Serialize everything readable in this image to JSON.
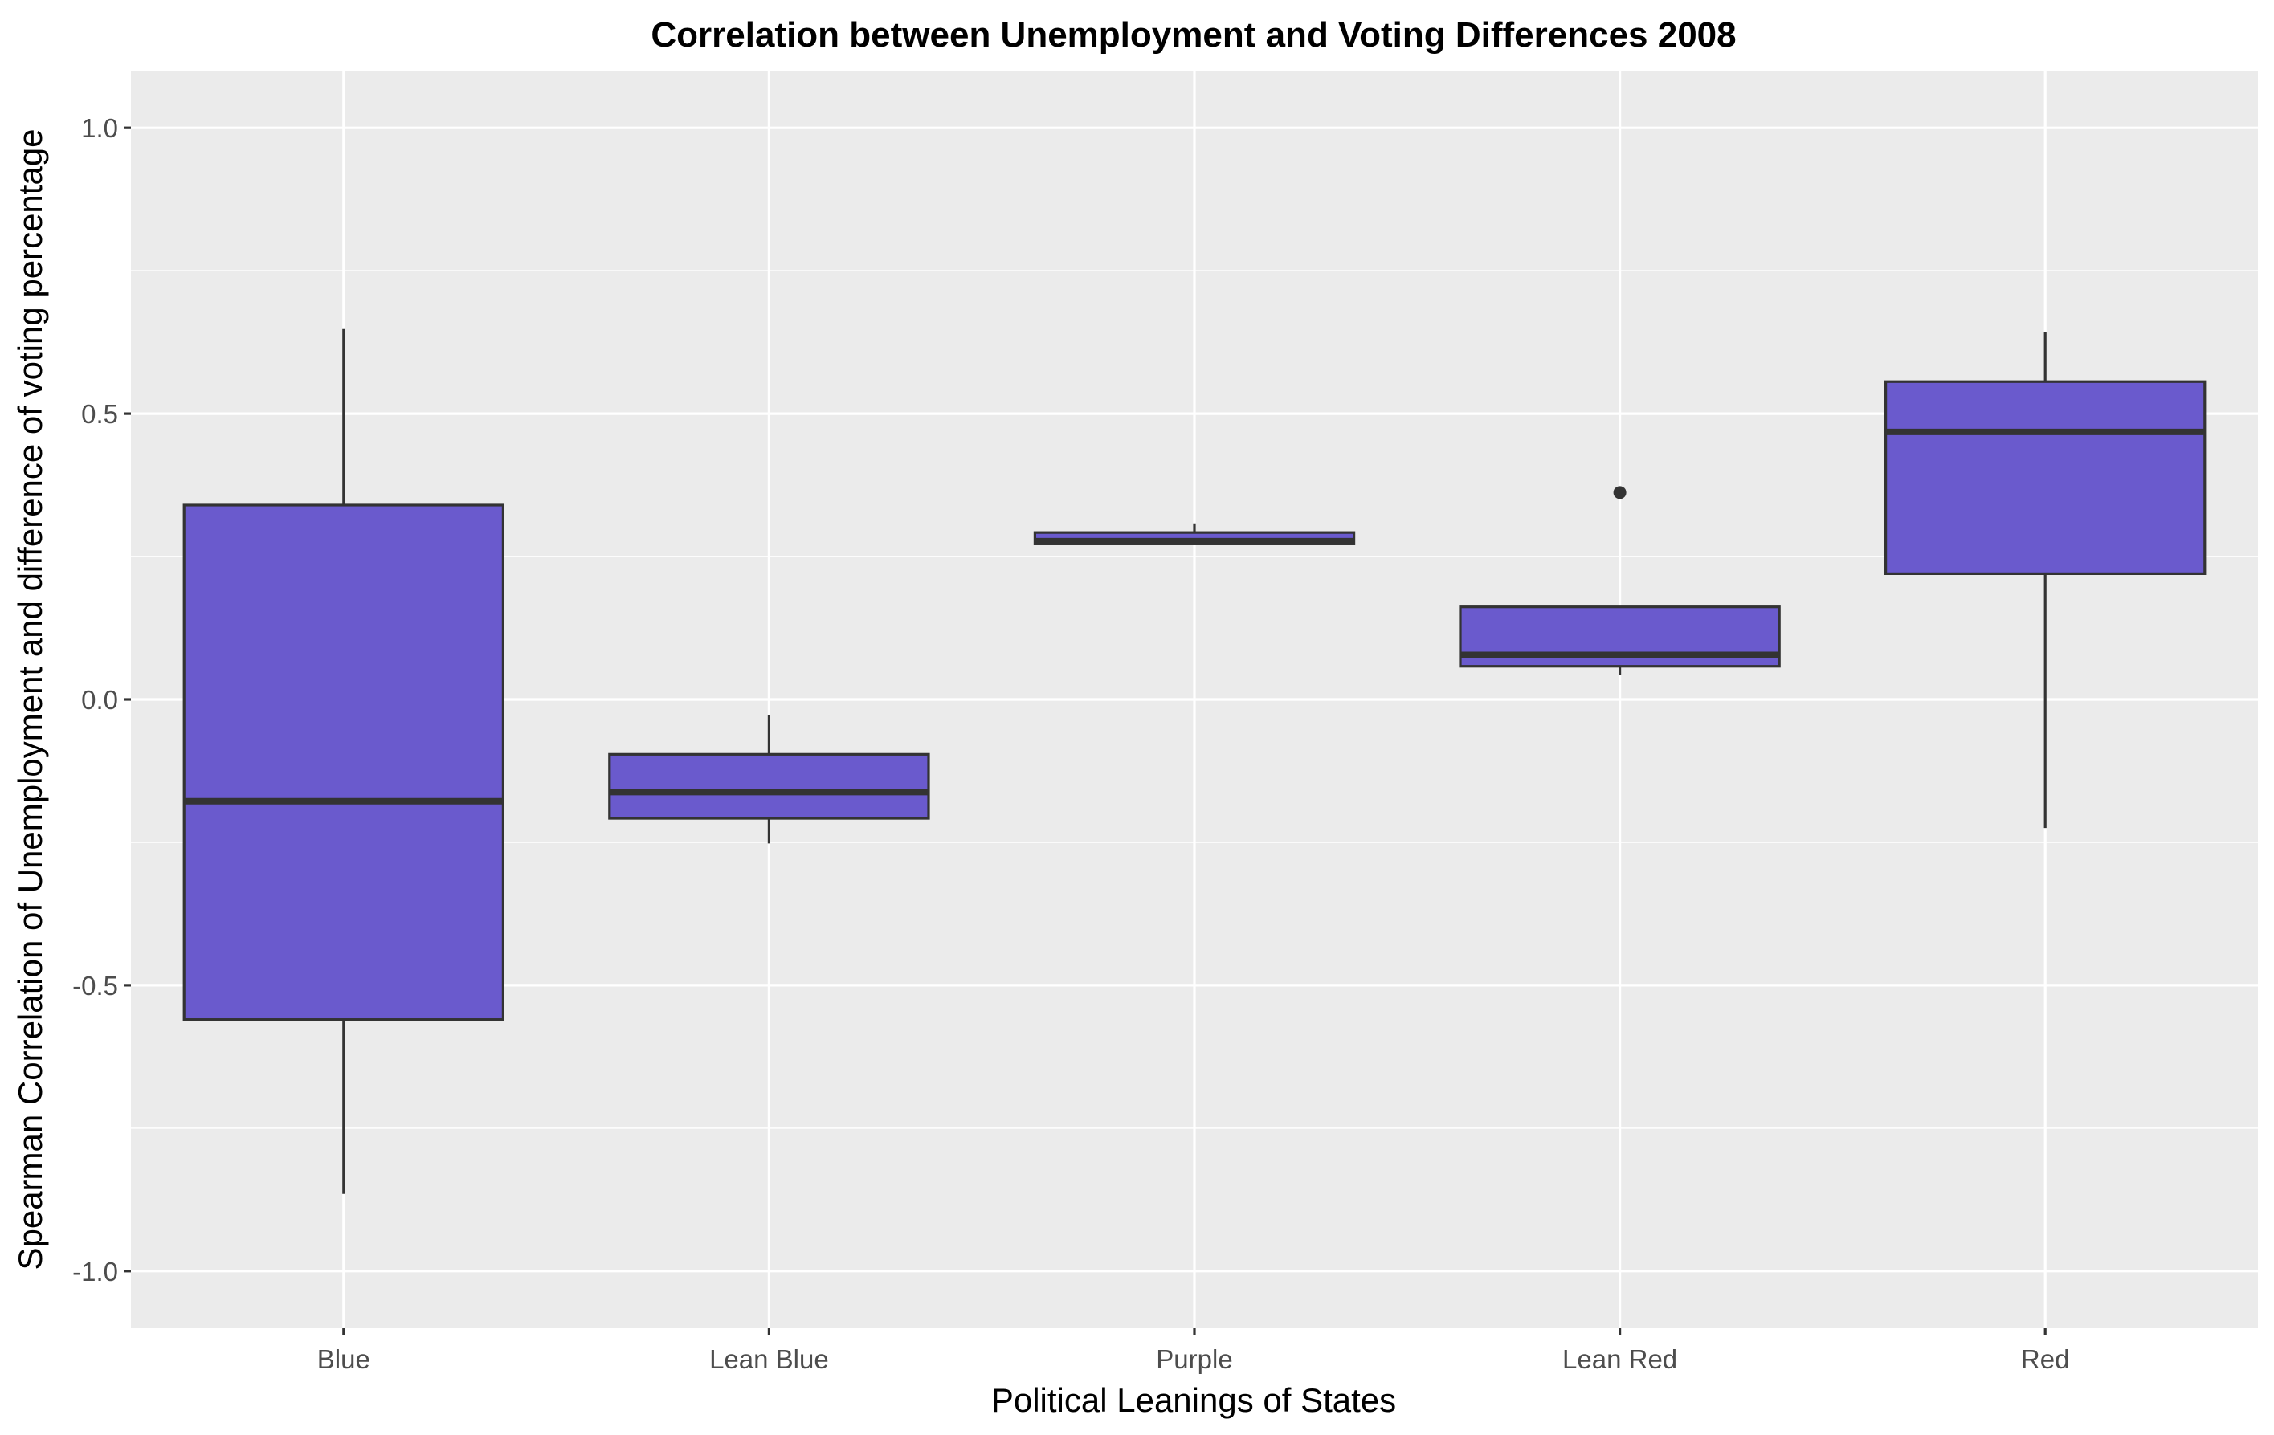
{
  "chart_data": {
    "type": "box",
    "title": "Correlation between Unemployment and Voting Differences 2008",
    "xlabel": "Political Leanings of States",
    "ylabel": "Spearman Correlation of Unemployment and difference of voting percentage",
    "ylim": [
      -1.1,
      1.1
    ],
    "yticks": [
      -1.0,
      -0.5,
      0.0,
      0.5,
      1.0
    ],
    "ytick_labels": [
      "-1.0",
      "-0.5",
      "0.0",
      "0.5",
      "1.0"
    ],
    "grid": true,
    "fill_color": "#6A5ACD",
    "categories": [
      "Blue",
      "Lean Blue",
      "Purple",
      "Lean Red",
      "Red"
    ],
    "boxes": [
      {
        "category": "Blue",
        "lower_whisker": -0.865,
        "q1": -0.56,
        "median": -0.178,
        "q3": 0.34,
        "upper_whisker": 0.648,
        "outliers": []
      },
      {
        "category": "Lean Blue",
        "lower_whisker": -0.252,
        "q1": -0.208,
        "median": -0.162,
        "q3": -0.096,
        "upper_whisker": -0.028,
        "outliers": []
      },
      {
        "category": "Purple",
        "lower_whisker": 0.272,
        "q1": 0.272,
        "median": 0.277,
        "q3": 0.292,
        "upper_whisker": 0.308,
        "outliers": []
      },
      {
        "category": "Lean Red",
        "lower_whisker": 0.043,
        "q1": 0.058,
        "median": 0.078,
        "q3": 0.162,
        "upper_whisker": 0.162,
        "outliers": [
          0.362
        ]
      },
      {
        "category": "Red",
        "lower_whisker": -0.225,
        "q1": 0.22,
        "median": 0.468,
        "q3": 0.556,
        "upper_whisker": 0.642,
        "outliers": []
      }
    ]
  }
}
